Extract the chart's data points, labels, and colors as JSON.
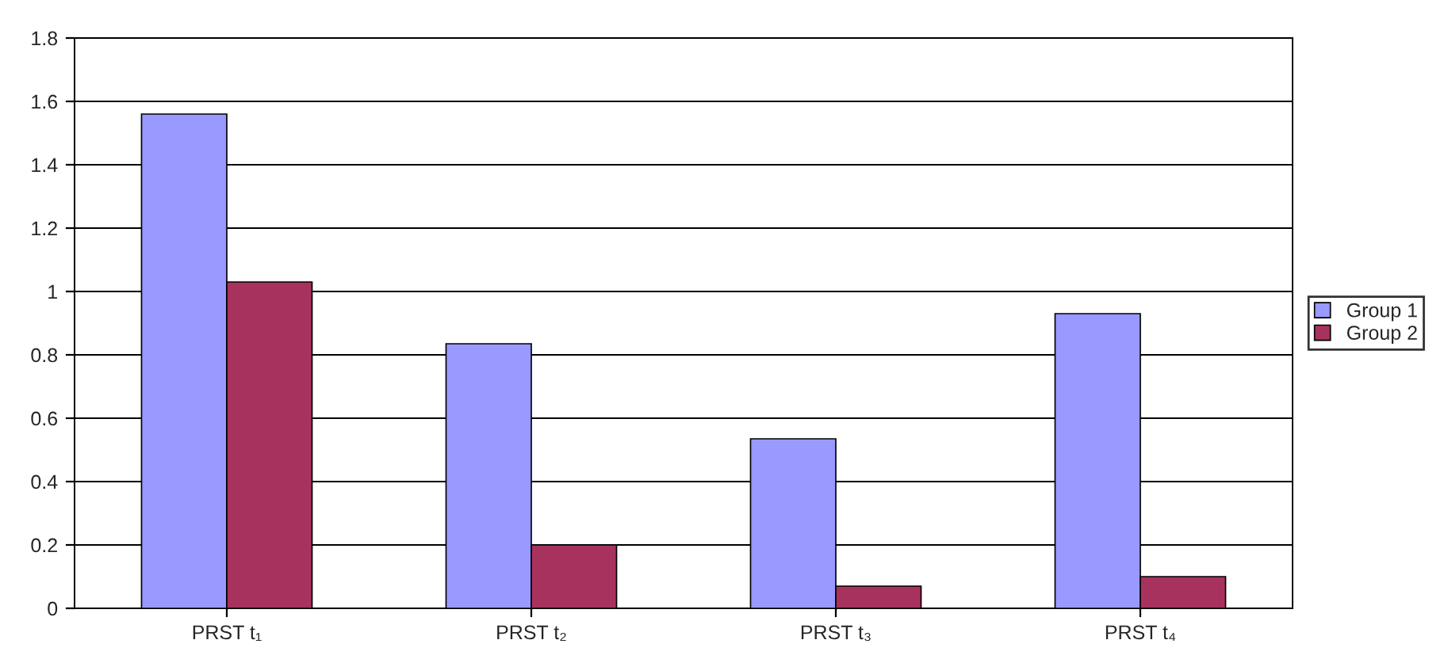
{
  "chart_data": {
    "type": "bar",
    "categories": [
      "PRST t₁",
      "PRST t₂",
      "PRST t₃",
      "PRST t₄"
    ],
    "series": [
      {
        "name": "Group 1",
        "color": "#9999ff",
        "values": [
          1.56,
          0.835,
          0.535,
          0.93
        ]
      },
      {
        "name": "Group 2",
        "color": "#a8325e",
        "values": [
          1.03,
          0.2,
          0.07,
          0.1
        ]
      }
    ],
    "ylim": [
      0,
      1.8
    ],
    "yticks": [
      0,
      0.2,
      0.4,
      0.6,
      0.8,
      1,
      1.2,
      1.4,
      1.6,
      1.8
    ],
    "grid": "y",
    "legend": "right"
  }
}
